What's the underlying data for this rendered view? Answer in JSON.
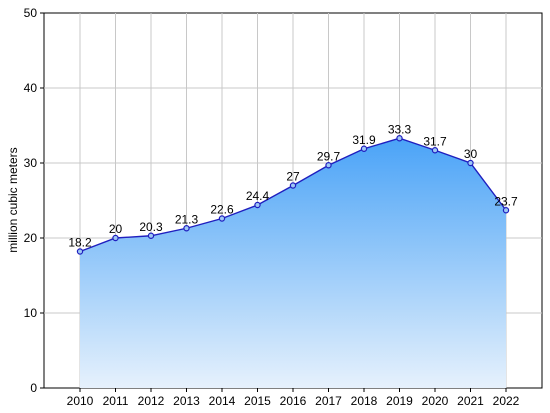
{
  "chart_data": {
    "type": "area",
    "title": "",
    "xlabel": "",
    "ylabel": "million cubic meters",
    "categories": [
      "2010",
      "2011",
      "2012",
      "2013",
      "2014",
      "2015",
      "2016",
      "2017",
      "2018",
      "2019",
      "2020",
      "2021",
      "2022"
    ],
    "values": [
      18.2,
      20,
      20.3,
      21.3,
      22.6,
      24.4,
      27,
      29.7,
      31.9,
      33.3,
      31.7,
      30,
      23.7
    ],
    "data_labels": [
      "18.2",
      "20",
      "20.3",
      "21.3",
      "22.6",
      "24.4",
      "27",
      "29.7",
      "31.9",
      "33.3",
      "31.7",
      "30",
      "23.7"
    ],
    "ylim": [
      0,
      50
    ],
    "yticks": [
      0,
      10,
      20,
      30,
      40,
      50
    ],
    "grid": true,
    "legend": "none",
    "colors": {
      "line": "#1f1fbf",
      "marker_fill": "#9fc8f5",
      "area_top": "#4aa3f7",
      "area_bottom": "#e6f1fc",
      "grid": "#c8c8c8",
      "axis": "#000000"
    }
  }
}
